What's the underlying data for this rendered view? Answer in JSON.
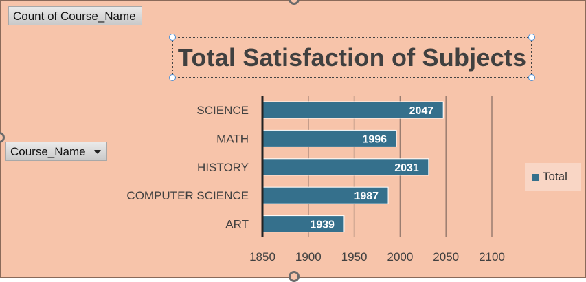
{
  "pivot": {
    "value_field": "Count of Course_Name",
    "axis_field": "Course_Name"
  },
  "colors": {
    "background": "#f7c4aa",
    "bar": "#35708c",
    "legend_bg": "#f9d6c5",
    "gridline": "#9a7d70"
  },
  "chart_data": {
    "type": "bar",
    "orientation": "horizontal",
    "title": "Total Satisfaction of Subjects",
    "categories": [
      "SCIENCE",
      "MATH",
      "HISTORY",
      "COMPUTER SCIENCE",
      "ART"
    ],
    "series": [
      {
        "name": "Total",
        "values": [
          2047,
          1996,
          2031,
          1987,
          1939
        ]
      }
    ],
    "xlim": [
      1850,
      2100
    ],
    "x_ticks": [
      1850,
      1900,
      1950,
      2000,
      2050,
      2100
    ],
    "data_labels": true,
    "grid": true,
    "legend": "right"
  }
}
